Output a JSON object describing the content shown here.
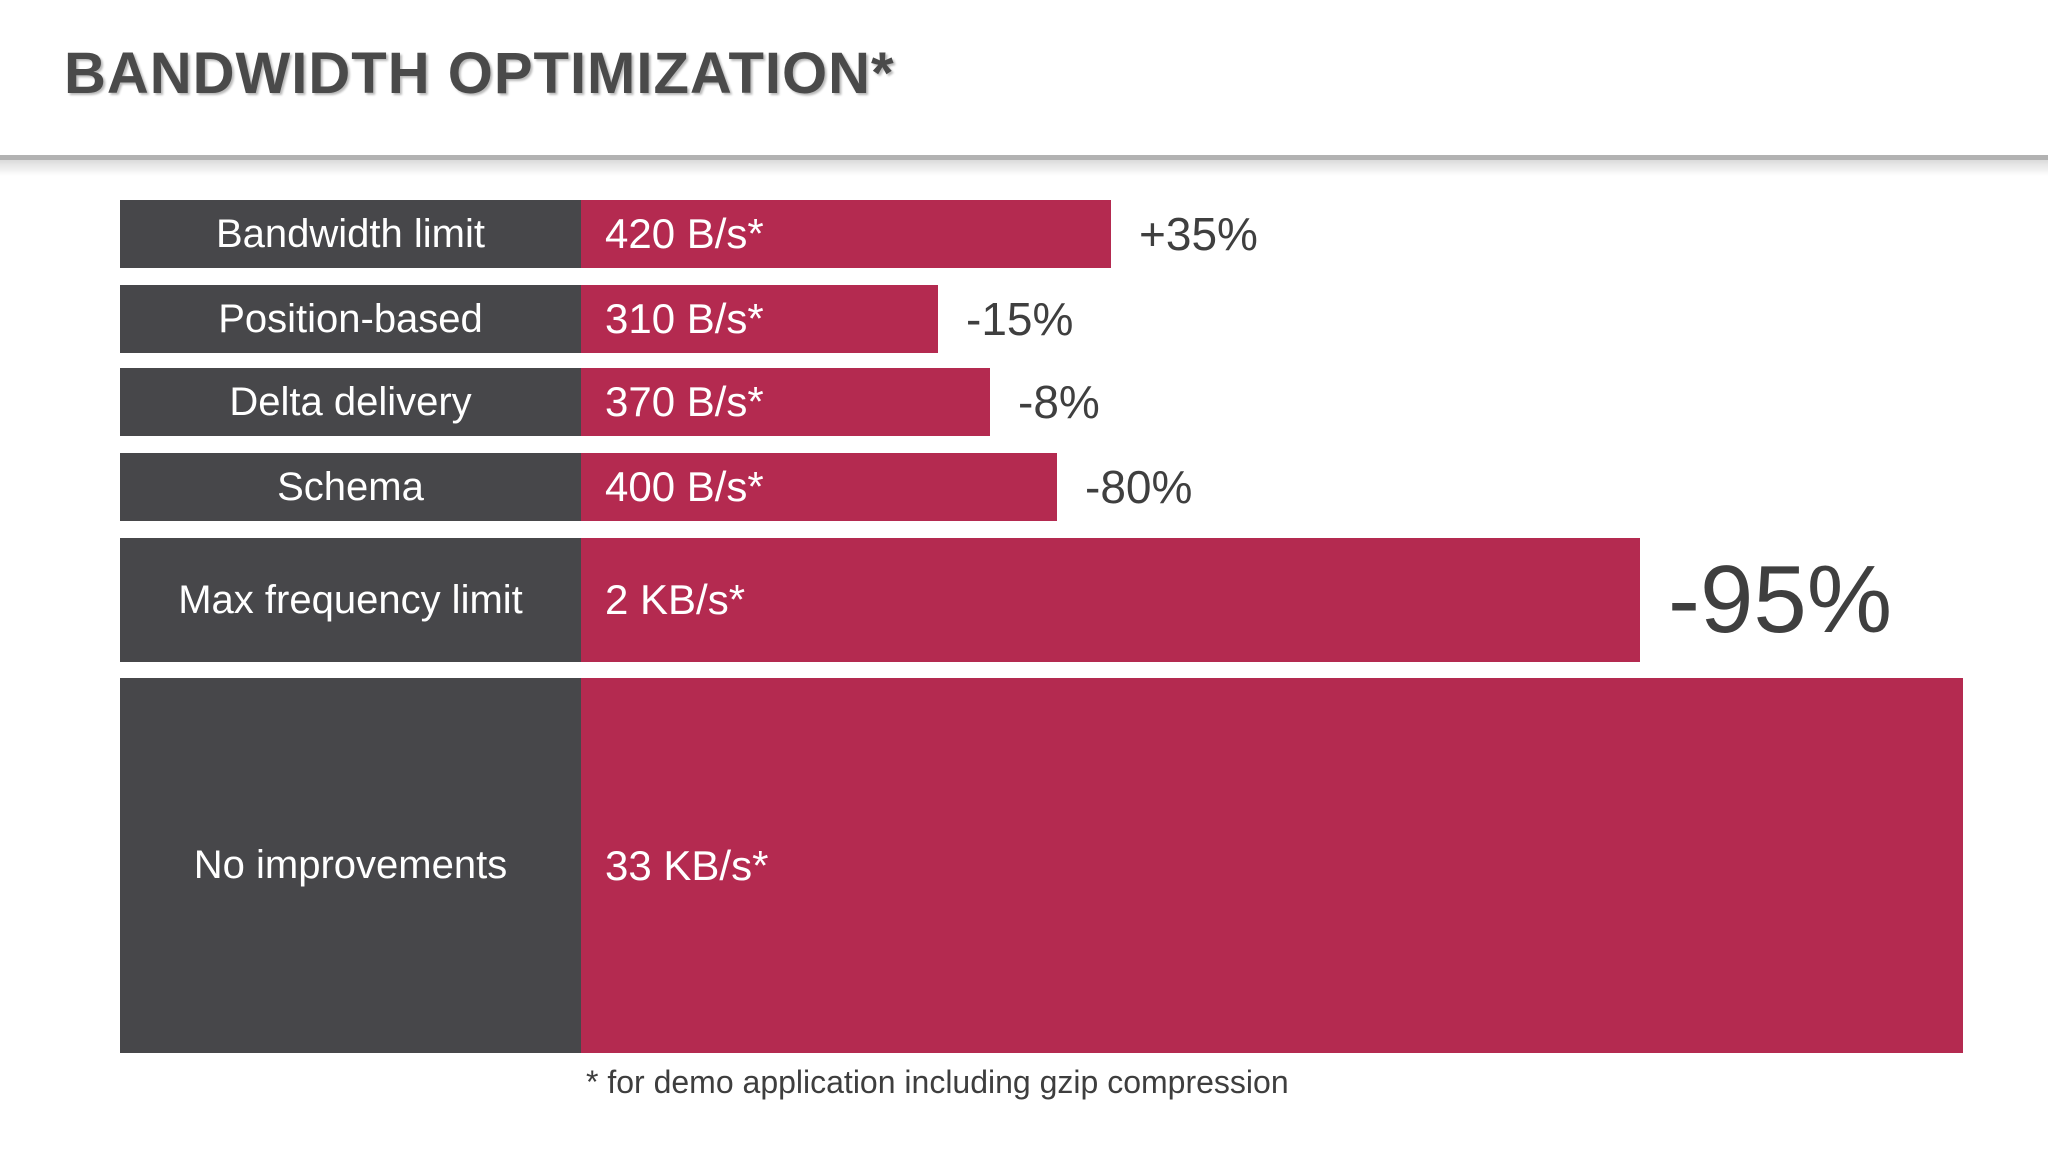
{
  "header": {
    "title": "BANDWIDTH OPTIMIZATION*"
  },
  "chart": {
    "rows": [
      {
        "label": "Bandwidth limit",
        "value": "420 B/s*",
        "delta": "+35%"
      },
      {
        "label": "Position-based",
        "value": "310 B/s*",
        "delta": "-15%"
      },
      {
        "label": "Delta delivery",
        "value": "370 B/s*",
        "delta": "-8%"
      },
      {
        "label": "Schema",
        "value": "400 B/s*",
        "delta": "-80%"
      },
      {
        "label": "Max frequency limit",
        "value": "2 KB/s*",
        "delta": "-95%"
      },
      {
        "label": "No improvements",
        "value": "33 KB/s*",
        "delta": ""
      }
    ]
  },
  "chart_data": {
    "type": "bar",
    "orientation": "horizontal",
    "title": "BANDWIDTH OPTIMIZATION*",
    "categories": [
      "Bandwidth limit",
      "Position-based",
      "Delta delivery",
      "Schema",
      "Max frequency limit",
      "No improvements"
    ],
    "series": [
      {
        "name": "bandwidth_bytes_per_s",
        "values": [
          420,
          310,
          370,
          400,
          2000,
          33000
        ]
      }
    ],
    "value_labels": [
      "420 B/s*",
      "310 B/s*",
      "370 B/s*",
      "400 B/s*",
      "2 KB/s*",
      "33 KB/s*"
    ],
    "delta_labels": [
      "+35%",
      "-15%",
      "-8%",
      "-80%",
      "-95%",
      ""
    ],
    "footnote": "* for demo application including gzip compression",
    "legend": "none",
    "grid": false,
    "bar_color": "#b42a50",
    "category_box_color": "#47474a",
    "text_color": "#3f3f3f"
  },
  "caption": {
    "text": "* for demo application including gzip compression"
  }
}
